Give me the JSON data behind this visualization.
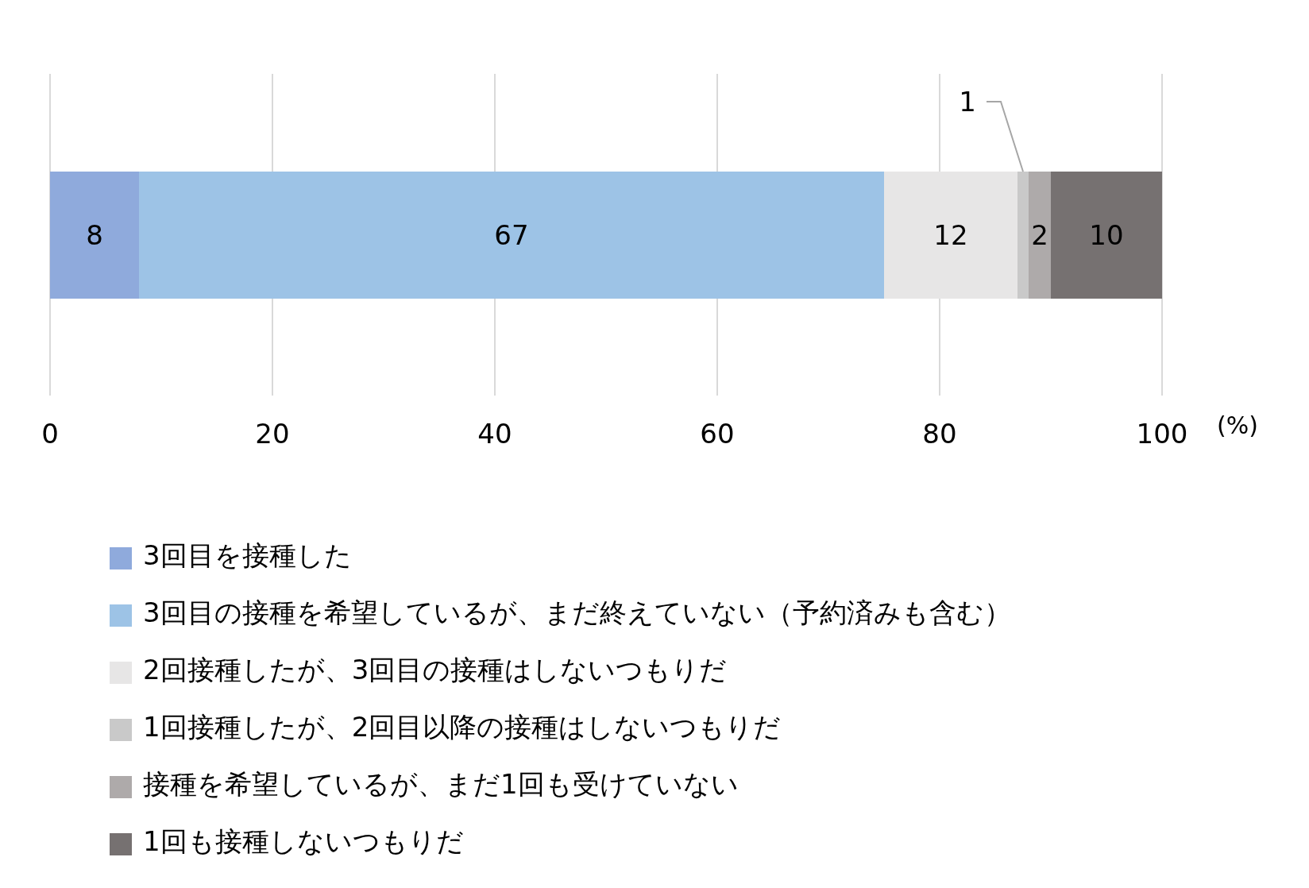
{
  "chart_data": {
    "type": "bar",
    "orientation": "horizontal",
    "stacked": true,
    "categories": [
      null
    ],
    "series": [
      {
        "name": "3回目を接種した",
        "color": "#8faadc",
        "values": [
          8
        ]
      },
      {
        "name": "3回目の接種を希望しているが、まだ終えていない（予約済みも含む）",
        "color": "#9dc3e6",
        "values": [
          67
        ]
      },
      {
        "name": "2回接種したが、3回目の接種はしないつもりだ",
        "color": "#e7e6e6",
        "values": [
          12
        ]
      },
      {
        "name": "1回接種したが、2回目以降の接種はしないつもりだ",
        "color": "#c9c9c9",
        "values": [
          1
        ]
      },
      {
        "name": "接種を希望しているが、まだ1回も受けていない",
        "color": "#aeaaaa",
        "values": [
          2
        ]
      },
      {
        "name": "1回も接種しないつもりだ",
        "color": "#767171",
        "values": [
          10
        ]
      }
    ],
    "xlabel": "(%)",
    "xlim": [
      0,
      100
    ],
    "xticks": [
      0,
      20,
      40,
      60,
      80,
      100
    ],
    "grid": "x",
    "legend": "bottom",
    "data_labels": true
  }
}
